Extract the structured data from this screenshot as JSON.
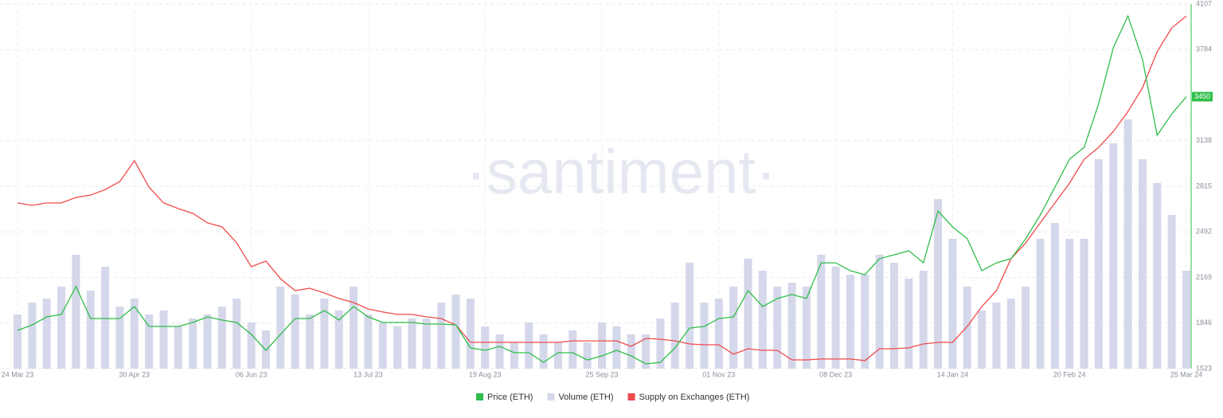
{
  "chart_data": {
    "type": "combo",
    "watermark": "·santiment·",
    "categories": [
      "24 Mar 23",
      null,
      null,
      null,
      null,
      null,
      null,
      null,
      "30 Apr 23",
      null,
      null,
      null,
      null,
      null,
      null,
      null,
      "06 Jun 23",
      null,
      null,
      null,
      null,
      null,
      null,
      null,
      "13 Jul 23",
      null,
      null,
      null,
      null,
      null,
      null,
      null,
      "19 Aug 23",
      null,
      null,
      null,
      null,
      null,
      null,
      null,
      "25 Sep 23",
      null,
      null,
      null,
      null,
      null,
      null,
      null,
      "01 Nov 23",
      null,
      null,
      null,
      null,
      null,
      null,
      null,
      "08 Dec 23",
      null,
      null,
      null,
      null,
      null,
      null,
      null,
      "14 Jan 24",
      null,
      null,
      null,
      null,
      null,
      null,
      null,
      "20 Feb 24",
      null,
      null,
      null,
      null,
      null,
      null,
      null,
      "25 Mar 24"
    ],
    "series": [
      {
        "name": "Price (ETH)",
        "type": "line",
        "color": "#2fbf4a",
        "values": [
          1794,
          1833,
          1890,
          1907,
          2104,
          1878,
          1878,
          1878,
          1963,
          1822,
          1822,
          1822,
          1850,
          1890,
          1867,
          1850,
          1766,
          1653,
          1766,
          1878,
          1878,
          1935,
          1867,
          1963,
          1890,
          1850,
          1850,
          1850,
          1839,
          1839,
          1833,
          1670,
          1653,
          1681,
          1636,
          1636,
          1568,
          1636,
          1636,
          1585,
          1613,
          1653,
          1613,
          1557,
          1568,
          1670,
          1811,
          1822,
          1878,
          1890,
          2076,
          1963,
          2020,
          2048,
          2020,
          2273,
          2273,
          2217,
          2189,
          2302,
          2330,
          2358,
          2273,
          2640,
          2527,
          2443,
          2217,
          2273,
          2302,
          2443,
          2612,
          2809,
          3007,
          3091,
          3402,
          3797,
          4022,
          3712,
          3176,
          3328,
          3450
        ]
      },
      {
        "name": "Volume (ETH)",
        "type": "bar",
        "color": "#d5d7ea",
        "values": [
          1907,
          1991,
          2019,
          2104,
          2330,
          2076,
          2245,
          1963,
          2019,
          1907,
          1935,
          1822,
          1878,
          1907,
          1963,
          2019,
          1850,
          1794,
          2104,
          2048,
          1907,
          2019,
          1935,
          2104,
          1907,
          1850,
          1822,
          1878,
          1878,
          1991,
          2048,
          2019,
          1822,
          1766,
          1709,
          1850,
          1766,
          1709,
          1794,
          1709,
          1850,
          1822,
          1766,
          1766,
          1878,
          1991,
          2273,
          1991,
          2019,
          2104,
          2302,
          2217,
          2104,
          2132,
          2104,
          2330,
          2245,
          2189,
          2189,
          2330,
          2273,
          2161,
          2217,
          2725,
          2443,
          2104,
          1935,
          1991,
          2019,
          2104,
          2443,
          2555,
          2443,
          2443,
          3007,
          3120,
          3289,
          3007,
          2838,
          2612,
          2217
        ]
      },
      {
        "name": "Supply on Exchanges (ETH)",
        "type": "line",
        "color": "#ef4b4b",
        "values": [
          2697,
          2680,
          2697,
          2697,
          2736,
          2753,
          2792,
          2849,
          2996,
          2809,
          2697,
          2657,
          2623,
          2556,
          2527,
          2414,
          2245,
          2285,
          2160,
          2076,
          2093,
          2059,
          2020,
          1991,
          1946,
          1924,
          1907,
          1907,
          1890,
          1878,
          1833,
          1709,
          1709,
          1709,
          1709,
          1709,
          1709,
          1709,
          1720,
          1720,
          1720,
          1720,
          1681,
          1737,
          1732,
          1720,
          1698,
          1692,
          1692,
          1625,
          1664,
          1653,
          1653,
          1585,
          1585,
          1591,
          1591,
          1591,
          1580,
          1664,
          1664,
          1670,
          1698,
          1709,
          1709,
          1822,
          1963,
          2076,
          2302,
          2414,
          2556,
          2697,
          2837,
          3007,
          3091,
          3204,
          3345,
          3515,
          3769,
          3938,
          4022
        ]
      }
    ],
    "ylim": [
      1523,
      4107
    ],
    "yticks": [
      1523,
      1846,
      2169,
      2492,
      2815,
      3138,
      3784,
      4107
    ],
    "grid": true,
    "legend": "bottom"
  }
}
